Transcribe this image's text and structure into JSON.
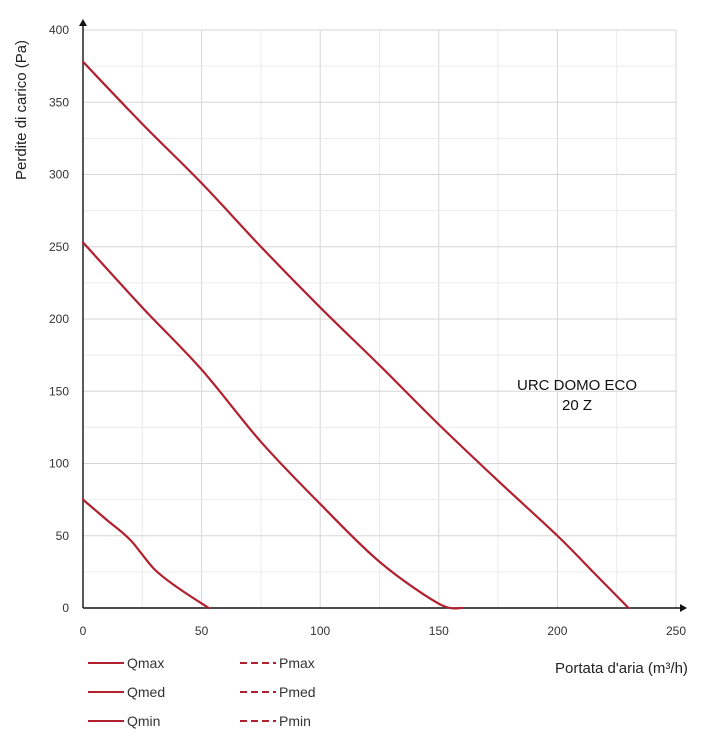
{
  "chart_data": {
    "type": "line",
    "xlabel": "Portata d'aria (m³/h)",
    "ylabel": "Perdite di carico  (Pa)",
    "xlim": [
      0,
      250
    ],
    "ylim": [
      0,
      400
    ],
    "xticks": [
      "0",
      "50",
      "100",
      "150",
      "200",
      "250"
    ],
    "yticks": [
      "0",
      "50",
      "100",
      "150",
      "200",
      "250",
      "300",
      "350",
      "400"
    ],
    "xtick_values": [
      0,
      50,
      100,
      150,
      200,
      250
    ],
    "ytick_values": [
      0,
      50,
      100,
      150,
      200,
      250,
      300,
      350,
      400
    ],
    "grid": true,
    "annotation": [
      "URC DOMO ECO",
      "20 Z"
    ],
    "series_color": "#b0202f",
    "series": [
      {
        "name": "Qmax",
        "x": [
          0,
          25,
          50,
          75,
          100,
          125,
          150,
          175,
          200,
          215,
          230
        ],
        "y": [
          378,
          335,
          294,
          250,
          208,
          168,
          127,
          88,
          50,
          25,
          0
        ]
      },
      {
        "name": "Qmed",
        "x": [
          0,
          25,
          50,
          75,
          100,
          125,
          150,
          160
        ],
        "y": [
          253,
          208,
          165,
          115,
          72,
          32,
          3,
          0
        ]
      },
      {
        "name": "Qmin",
        "x": [
          0,
          10,
          20,
          30,
          40,
          53
        ],
        "y": [
          75,
          61,
          47,
          27,
          14,
          0
        ]
      }
    ],
    "legend": [
      {
        "label": "Qmax",
        "style": "solid"
      },
      {
        "label": "Pmax",
        "style": "dashed"
      },
      {
        "label": "Qmed",
        "style": "solid"
      },
      {
        "label": "Pmed",
        "style": "dashed"
      },
      {
        "label": "Qmin",
        "style": "solid"
      },
      {
        "label": "Pmin",
        "style": "dashed"
      }
    ]
  }
}
